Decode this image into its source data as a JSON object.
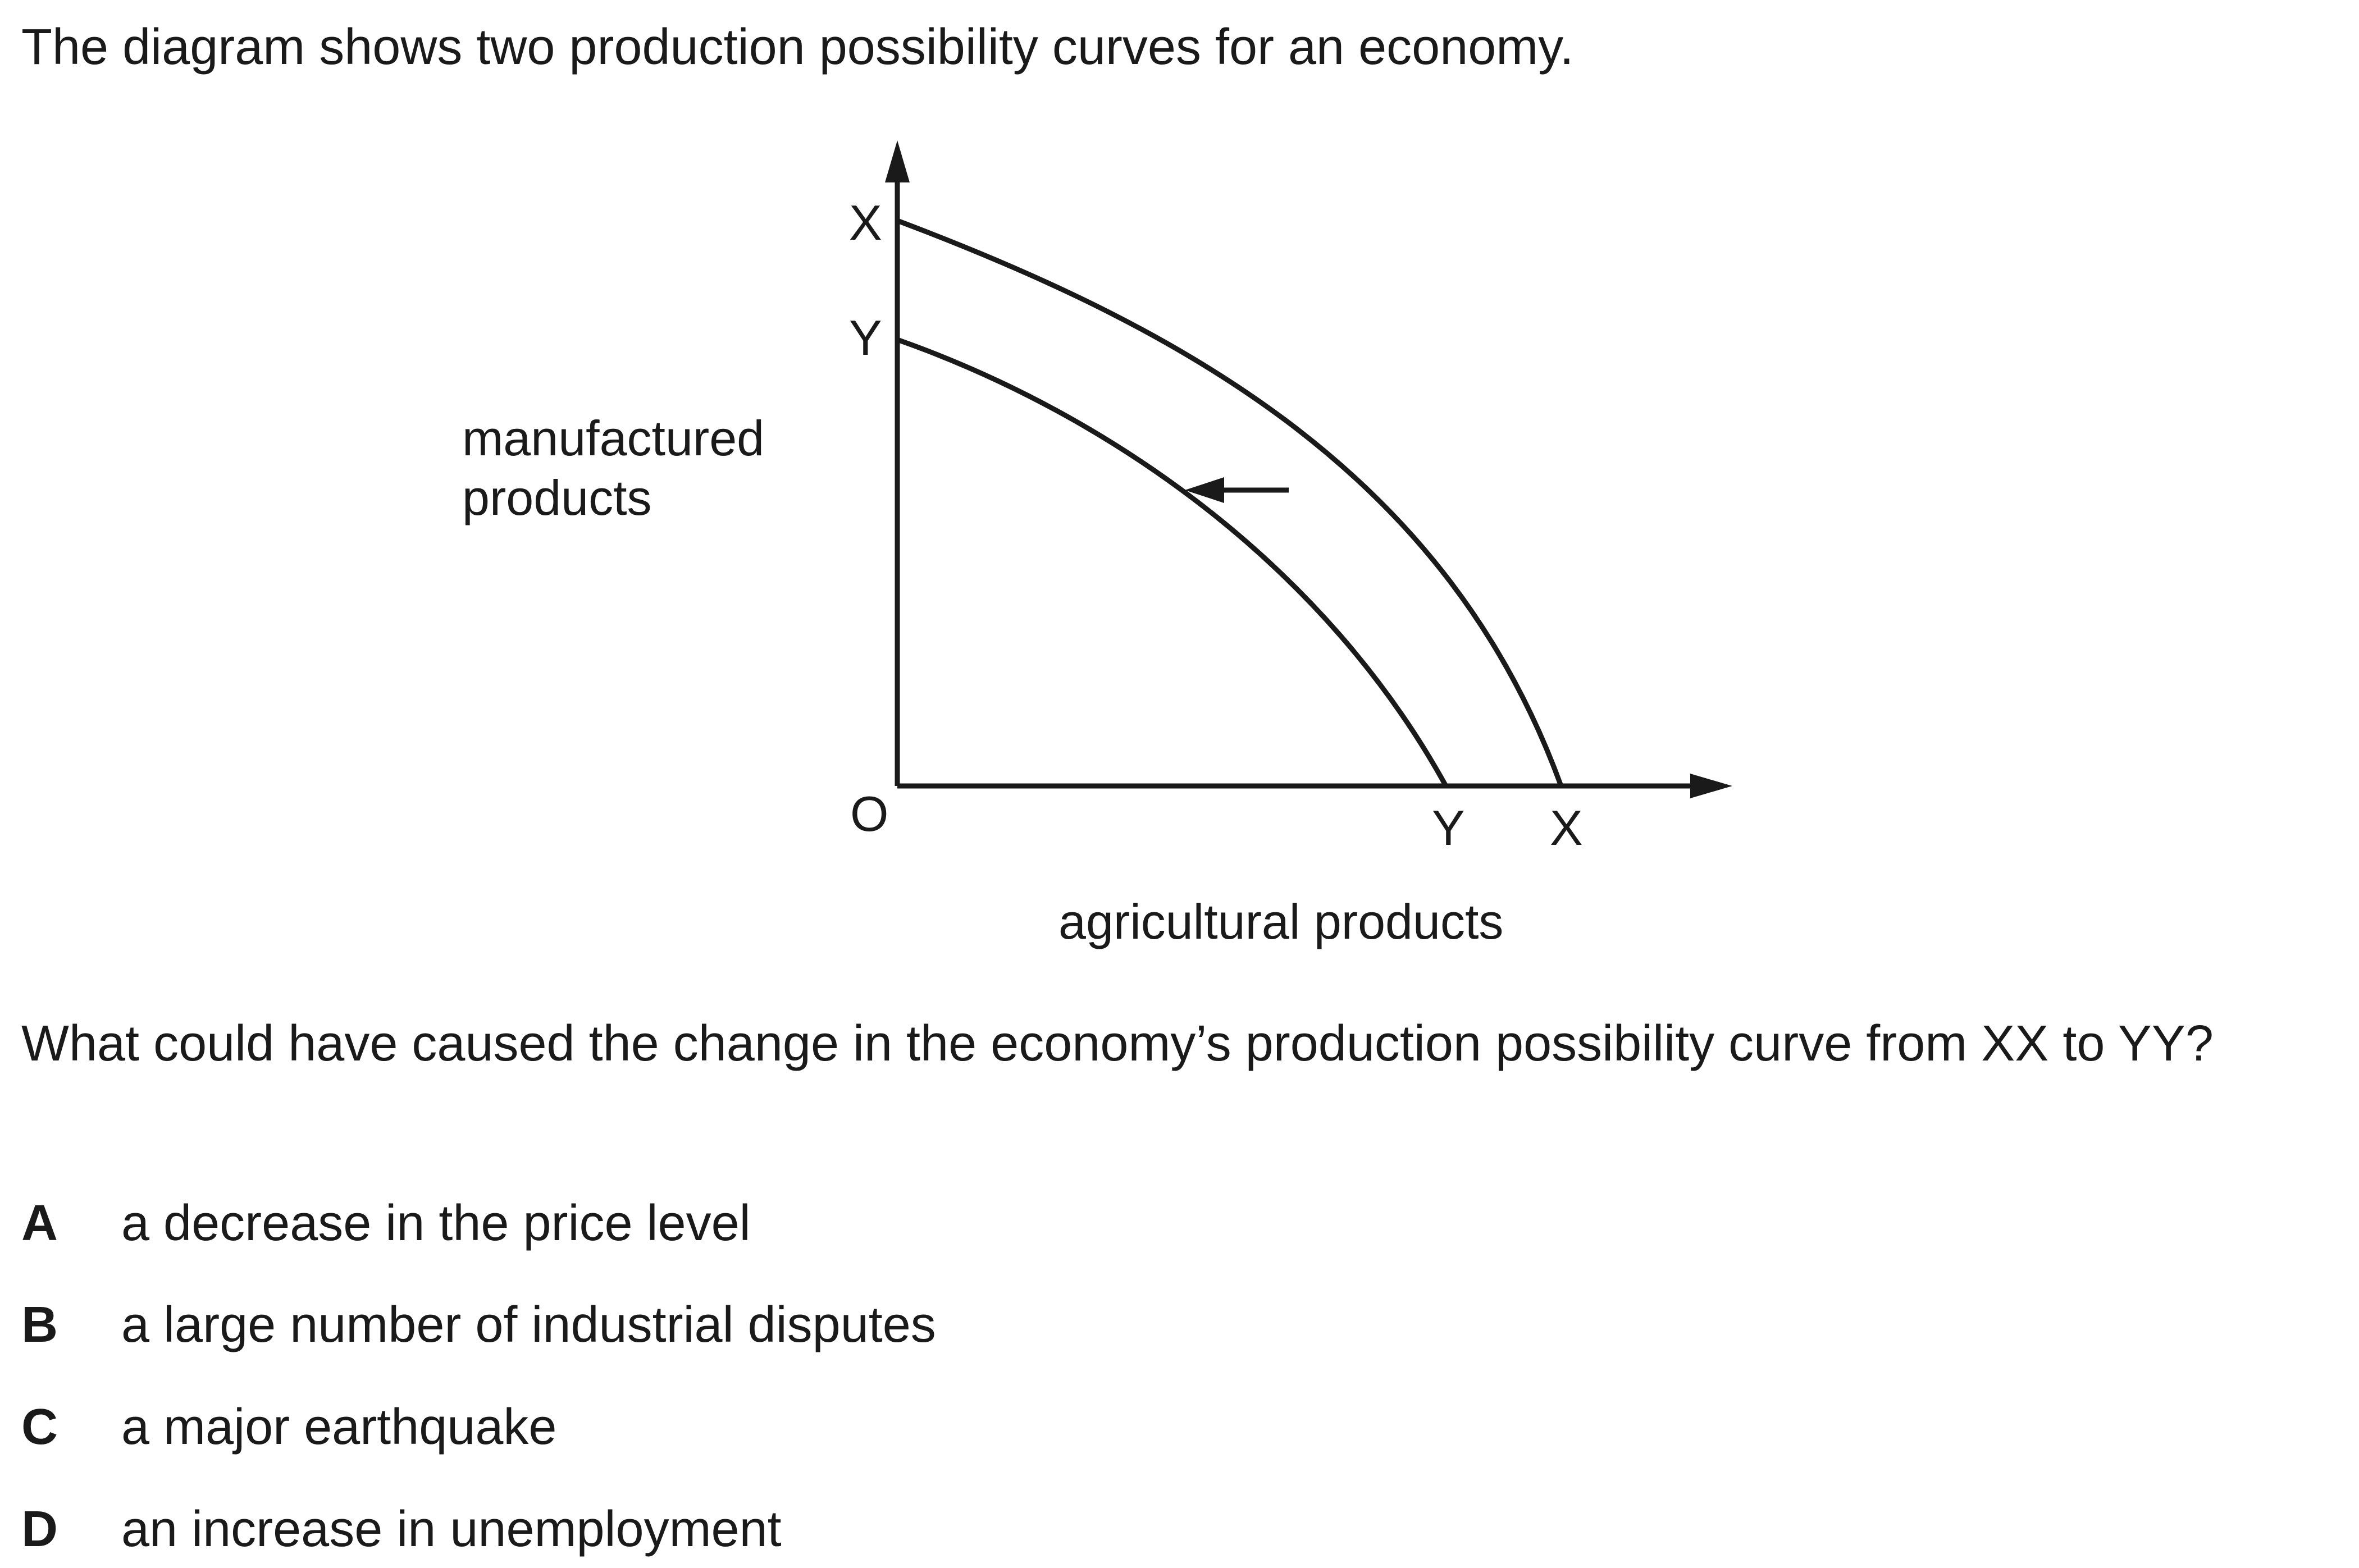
{
  "intro": "The diagram shows two production possibility curves for an economy.",
  "diagram": {
    "y_axis_label": "manufactured\nproducts",
    "x_axis_label": "agricultural products",
    "origin_label": "O",
    "x_curve_label_y": "X",
    "y_curve_label_y": "Y",
    "y_curve_label_x": "Y",
    "x_curve_label_x": "X"
  },
  "question": "What could have caused the change in the economy’s production possibility curve from XX to YY?",
  "options": [
    {
      "letter": "A",
      "text": "a decrease in the price level"
    },
    {
      "letter": "B",
      "text": "a large number of industrial disputes"
    },
    {
      "letter": "C",
      "text": "a major earthquake"
    },
    {
      "letter": "D",
      "text": "an increase in unemployment"
    }
  ]
}
